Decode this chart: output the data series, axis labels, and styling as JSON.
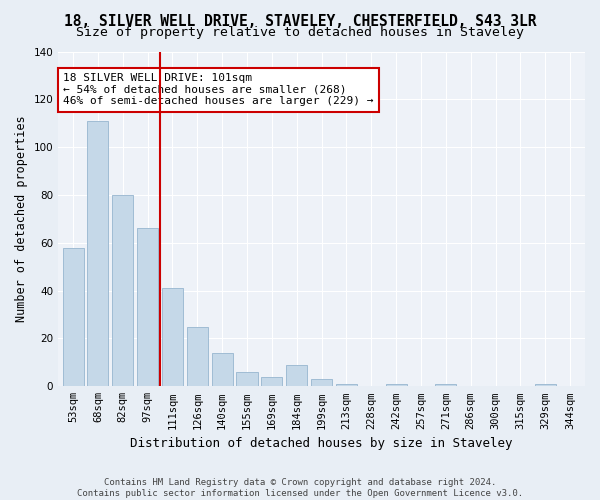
{
  "title1": "18, SILVER WELL DRIVE, STAVELEY, CHESTERFIELD, S43 3LR",
  "title2": "Size of property relative to detached houses in Staveley",
  "xlabel": "Distribution of detached houses by size in Staveley",
  "ylabel": "Number of detached properties",
  "categories": [
    "53sqm",
    "68sqm",
    "82sqm",
    "97sqm",
    "111sqm",
    "126sqm",
    "140sqm",
    "155sqm",
    "169sqm",
    "184sqm",
    "199sqm",
    "213sqm",
    "228sqm",
    "242sqm",
    "257sqm",
    "271sqm",
    "286sqm",
    "300sqm",
    "315sqm",
    "329sqm",
    "344sqm"
  ],
  "values": [
    58,
    111,
    80,
    66,
    41,
    25,
    14,
    6,
    4,
    9,
    3,
    1,
    0,
    1,
    0,
    1,
    0,
    0,
    0,
    1,
    0
  ],
  "bar_color": "#c5d8e8",
  "bar_edge_color": "#a0bcd4",
  "vline_color": "#cc0000",
  "vline_pos": 3.5,
  "annotation_text": "18 SILVER WELL DRIVE: 101sqm\n← 54% of detached houses are smaller (268)\n46% of semi-detached houses are larger (229) →",
  "annotation_box_color": "#ffffff",
  "annotation_box_edge_color": "#cc0000",
  "ylim": [
    0,
    140
  ],
  "yticks": [
    0,
    20,
    40,
    60,
    80,
    100,
    120,
    140
  ],
  "bg_color": "#e8eef5",
  "plot_bg_color": "#eef2f8",
  "footer": "Contains HM Land Registry data © Crown copyright and database right 2024.\nContains public sector information licensed under the Open Government Licence v3.0.",
  "title1_fontsize": 10.5,
  "title2_fontsize": 9.5,
  "xlabel_fontsize": 9,
  "ylabel_fontsize": 8.5,
  "tick_fontsize": 7.5,
  "annotation_fontsize": 8,
  "footer_fontsize": 6.5
}
